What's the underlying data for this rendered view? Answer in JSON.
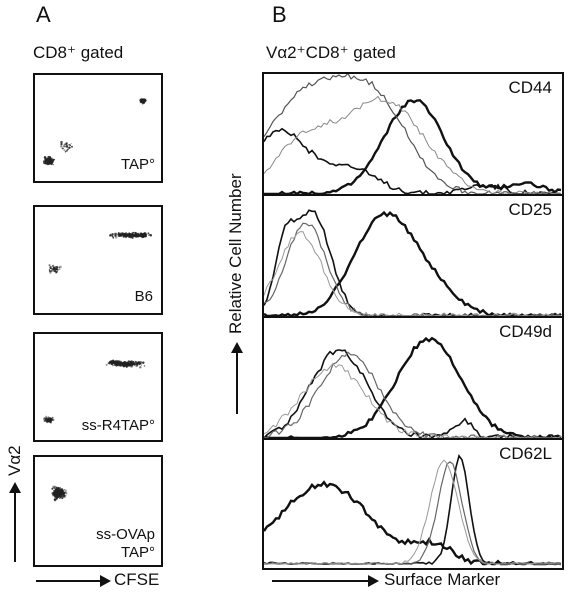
{
  "panels": {
    "a_letter": "A",
    "b_letter": "B",
    "a_gate": "CD8⁺ gated",
    "b_gate": "Vα2⁺CD8⁺ gated"
  },
  "dot_plots": [
    {
      "line1": "TAP°",
      "line2": ""
    },
    {
      "line1": "B6",
      "line2": ""
    },
    {
      "line1": "ss-R4TAP°",
      "line2": ""
    },
    {
      "line1": "ss-OVAp",
      "line2": "TAP°"
    }
  ],
  "axes": {
    "a_y": "Vα2",
    "a_x": "CFSE",
    "b_y": "Relative Cell Number",
    "b_x": "Surface Marker"
  },
  "histograms": [
    {
      "marker": "CD44"
    },
    {
      "marker": "CD25"
    },
    {
      "marker": "CD49d"
    },
    {
      "marker": "CD62L"
    }
  ]
}
